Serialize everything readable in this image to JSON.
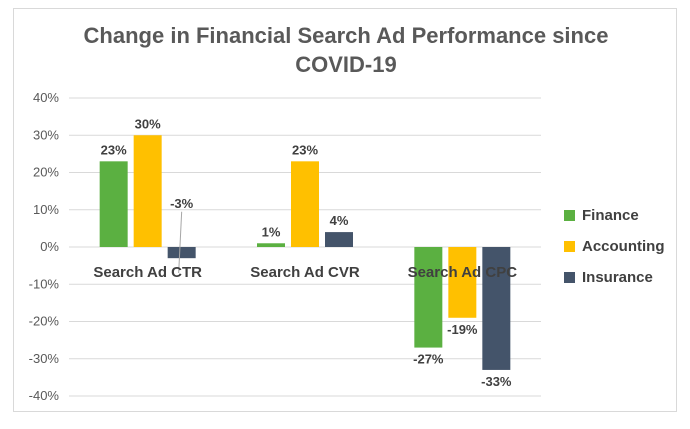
{
  "chart_data": {
    "type": "bar",
    "title_lines": [
      "Change in Financial Search Ad Performance since",
      "COVID-19"
    ],
    "categories": [
      "Search Ad CTR",
      "Search Ad CVR",
      "Search Ad CPC"
    ],
    "series": [
      {
        "name": "Finance",
        "color": "#5BB041",
        "values": [
          23,
          1,
          -27
        ],
        "labels": [
          "23%",
          "1%",
          "-27%"
        ]
      },
      {
        "name": "Accounting",
        "color": "#FFC000",
        "values": [
          30,
          23,
          -19
        ],
        "labels": [
          "30%",
          "23%",
          "-19%"
        ]
      },
      {
        "name": "Insurance",
        "color": "#44546A",
        "values": [
          -3,
          4,
          -33
        ],
        "labels": [
          "-3%",
          "4%",
          "-33%"
        ]
      }
    ],
    "y_ticks": [
      40,
      30,
      20,
      10,
      0,
      -10,
      -20,
      -30,
      -40
    ],
    "y_tick_labels": [
      "40%",
      "30%",
      "20%",
      "10%",
      "0%",
      "-10%",
      "-20%",
      "-30%",
      "-40%"
    ],
    "ylim": [
      -40,
      40
    ],
    "grid": true,
    "legend_position": "right"
  }
}
